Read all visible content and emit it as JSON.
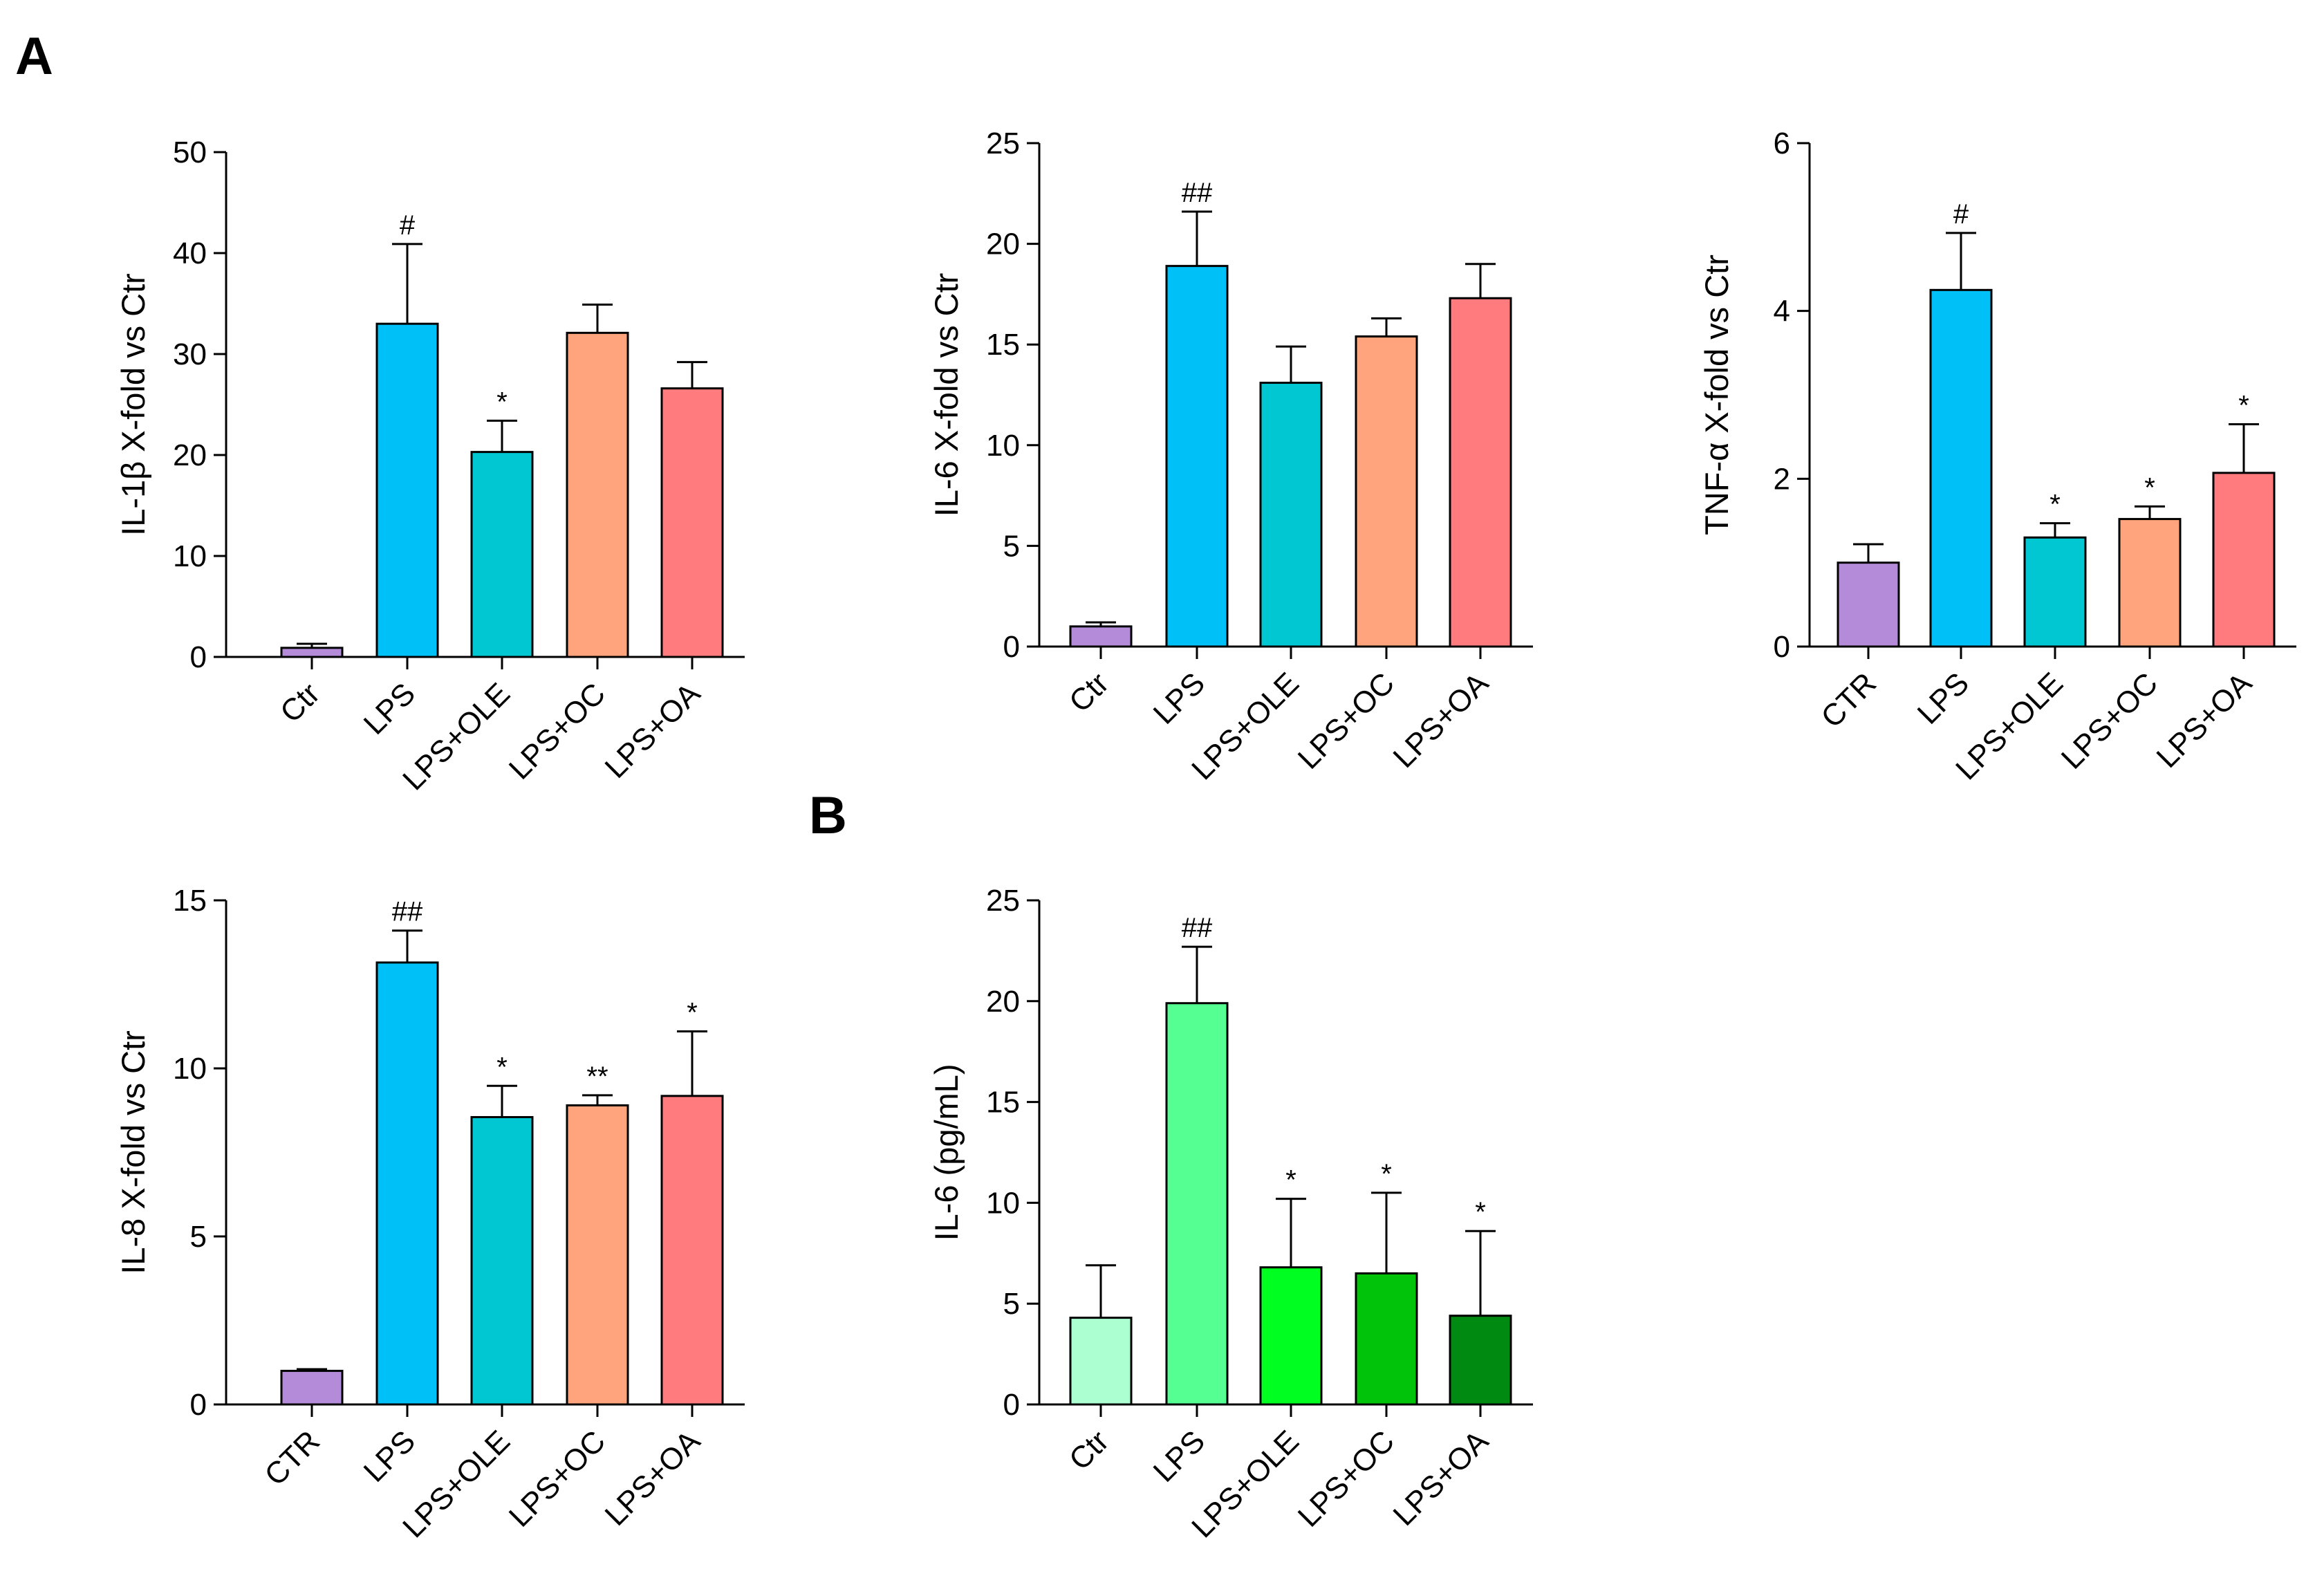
{
  "panel_labels": {
    "a": "A",
    "b": "B"
  },
  "chart_data": [
    {
      "id": "il1b",
      "type": "bar",
      "ylabel": "IL-1β X-fold vs Ctr",
      "ylim": [
        0,
        50
      ],
      "yticks": [
        0,
        10,
        20,
        30,
        40,
        50
      ],
      "categories": [
        "Ctr",
        "LPS",
        "LPS+OLE",
        "LPS+OC",
        "LPS+OA"
      ],
      "values": [
        0.9,
        33.0,
        20.3,
        32.1,
        26.6
      ],
      "errors": [
        0.4,
        7.9,
        3.1,
        2.8,
        2.6
      ],
      "annotations": [
        "",
        "#",
        "*",
        "",
        ""
      ],
      "colors": [
        "#b48bd9",
        "#00c1f7",
        "#00c7d1",
        "#ffa47c",
        "#ff7b7d"
      ]
    },
    {
      "id": "il6",
      "type": "bar",
      "ylabel": "IL-6 X-fold vs Ctr",
      "ylim": [
        0,
        25
      ],
      "yticks": [
        0,
        5,
        10,
        15,
        20,
        25
      ],
      "categories": [
        "Ctr",
        "LPS",
        "LPS+OLE",
        "LPS+OC",
        "LPS+OA"
      ],
      "values": [
        1.0,
        18.9,
        13.1,
        15.4,
        17.3
      ],
      "errors": [
        0.2,
        2.7,
        1.8,
        0.9,
        1.7
      ],
      "annotations": [
        "",
        "##",
        "",
        "",
        ""
      ],
      "colors": [
        "#b48bd9",
        "#00c1f7",
        "#00c7d1",
        "#ffa47c",
        "#ff7b7d"
      ]
    },
    {
      "id": "tnfa",
      "type": "bar",
      "ylabel": "TNF-α X-fold vs Ctr",
      "ylim": [
        0,
        6
      ],
      "yticks": [
        0,
        2,
        4,
        6
      ],
      "categories": [
        "CTR",
        "LPS",
        "LPS+OLE",
        "LPS+OC",
        "LPS+OA"
      ],
      "values": [
        1.0,
        4.25,
        1.3,
        1.52,
        2.07
      ],
      "errors": [
        0.22,
        0.68,
        0.17,
        0.15,
        0.58
      ],
      "annotations": [
        "",
        "#",
        "*",
        "*",
        "*"
      ],
      "colors": [
        "#b48bd9",
        "#00c1f7",
        "#00c7d1",
        "#ffa47c",
        "#ff7b7d"
      ]
    },
    {
      "id": "il8",
      "type": "bar",
      "ylabel": "IL-8 X-fold vs Ctr",
      "ylim": [
        0,
        15
      ],
      "yticks": [
        0,
        5,
        10,
        15
      ],
      "categories": [
        "CTR",
        "LPS",
        "LPS+OLE",
        "LPS+OC",
        "LPS+OA"
      ],
      "values": [
        1.0,
        13.15,
        8.55,
        8.9,
        9.18
      ],
      "errors": [
        0.05,
        0.95,
        0.93,
        0.3,
        1.92
      ],
      "annotations": [
        "",
        "##",
        "*",
        "**",
        "*"
      ],
      "colors": [
        "#b48bd9",
        "#00c1f7",
        "#00c7d1",
        "#ffa47c",
        "#ff7b7d"
      ]
    },
    {
      "id": "il6pg",
      "type": "bar",
      "ylabel": "IL-6 (pg/mL)",
      "ylim": [
        0,
        25
      ],
      "yticks": [
        0,
        5,
        10,
        15,
        20,
        25
      ],
      "categories": [
        "Ctr",
        "LPS",
        "LPS+OLE",
        "LPS+OC",
        "LPS+OA"
      ],
      "values": [
        4.3,
        19.9,
        6.8,
        6.5,
        4.4
      ],
      "errors": [
        2.6,
        2.8,
        3.4,
        4.0,
        4.2
      ],
      "annotations": [
        "",
        "##",
        "*",
        "*",
        "*"
      ],
      "colors": [
        "#abffd0",
        "#56ff92",
        "#00ff20",
        "#00c30a",
        "#008a12"
      ]
    }
  ]
}
